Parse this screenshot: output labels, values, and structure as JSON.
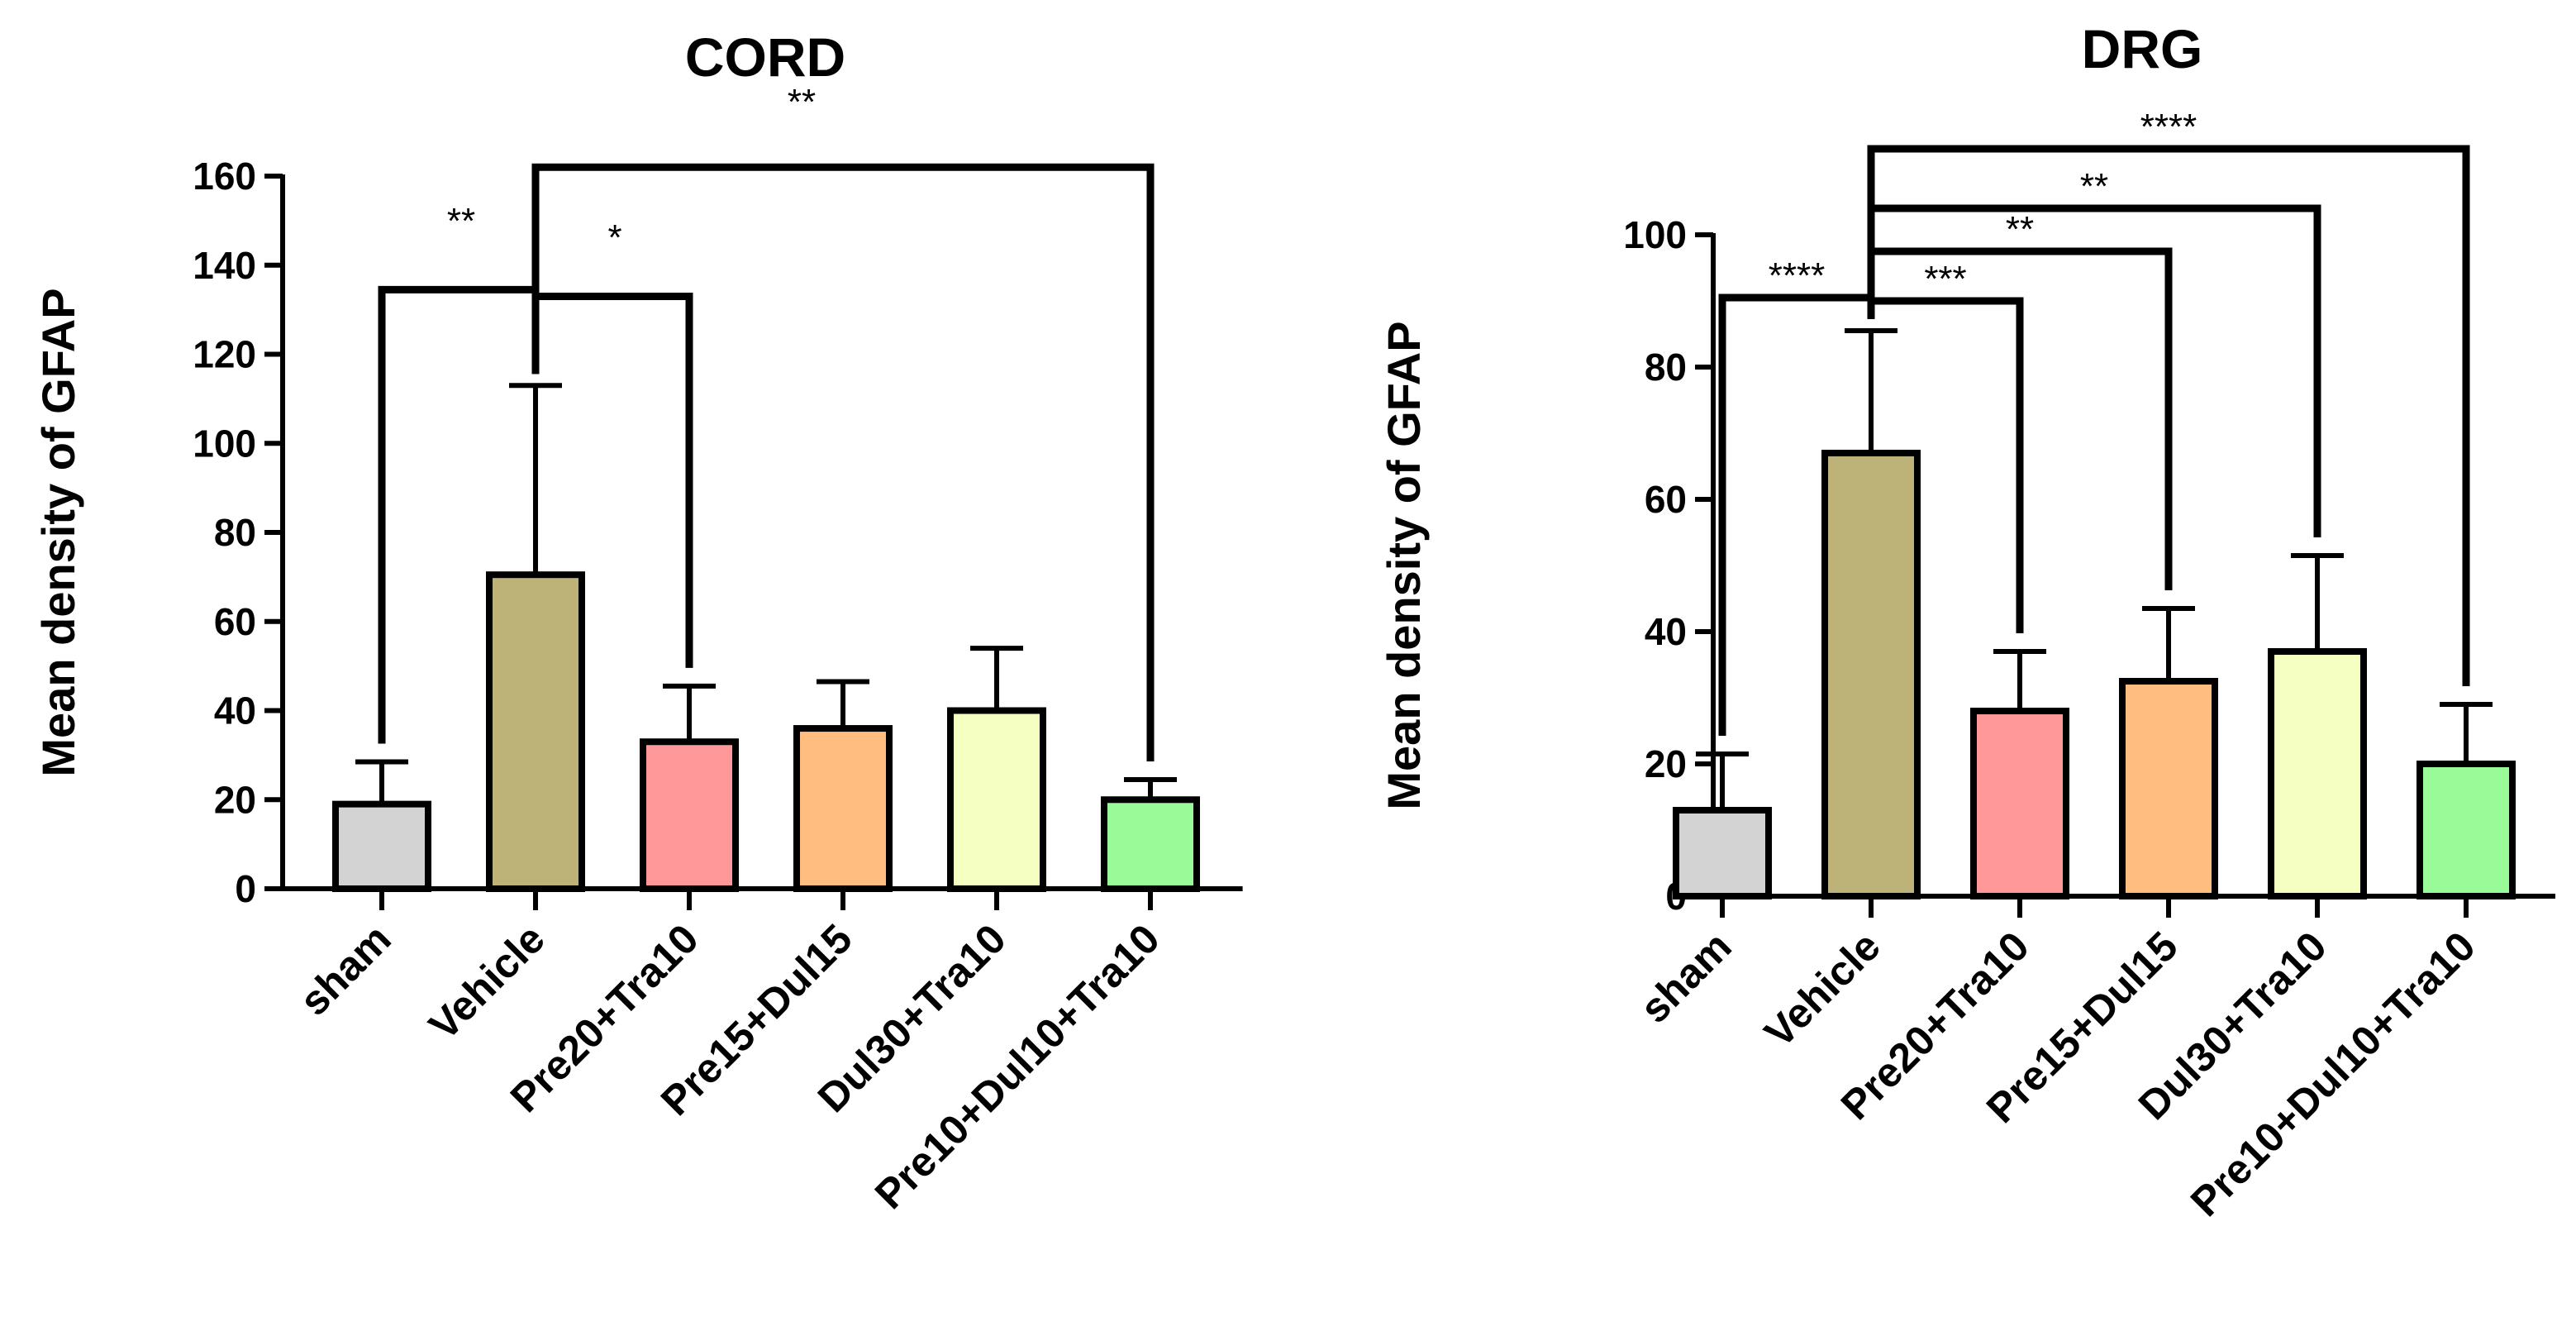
{
  "chart_data": [
    {
      "type": "bar",
      "title": "CORD",
      "xlabel": "",
      "ylabel": "Mean density of GFAP",
      "ylim": [
        0,
        160
      ],
      "yticks": [
        0,
        20,
        40,
        60,
        80,
        100,
        120,
        140,
        160
      ],
      "categories": [
        "sham",
        "Vehicle",
        "Pre20+Tra10",
        "Pre15+Dul15",
        "Dul30+Tra10",
        "Pre10+Dul10+Tra10"
      ],
      "values": [
        19,
        70.5,
        33,
        36,
        40,
        20
      ],
      "errors": [
        9.5,
        42.5,
        12.5,
        10.5,
        14,
        4.5
      ],
      "colors": [
        "#d3d3d3",
        "#bdb277",
        "#ff9999",
        "#ffbe80",
        "#f5ffc2",
        "#98fb98"
      ],
      "significance": [
        {
          "from": 1,
          "to": 0,
          "label": "**",
          "bracket_y": 134.5
        },
        {
          "from": 1,
          "to": 2,
          "label": "*",
          "bracket_y": 133
        },
        {
          "from": 1,
          "to": 5,
          "label": "**",
          "bracket_y": 162
        }
      ]
    },
    {
      "type": "bar",
      "title": "DRG",
      "xlabel": "",
      "ylabel": "Mean density of GFAP",
      "ylim": [
        0,
        100
      ],
      "yticks": [
        0,
        20,
        40,
        60,
        80,
        100
      ],
      "categories": [
        "sham",
        "Vehicle",
        "Pre20+Tra10",
        "Pre15+Dul15",
        "Dul30+Tra10",
        "Pre10+Dul10+Tra10"
      ],
      "values": [
        13,
        67,
        28,
        32.5,
        37,
        20
      ],
      "errors": [
        8.5,
        18.5,
        9,
        11,
        14.5,
        9
      ],
      "colors": [
        "#d3d3d3",
        "#bdb277",
        "#ff9999",
        "#ffbe80",
        "#f5ffc2",
        "#98fb98"
      ],
      "significance": [
        {
          "from": 1,
          "to": 0,
          "label": "****",
          "bracket_y": 90.5
        },
        {
          "from": 1,
          "to": 2,
          "label": "***",
          "bracket_y": 90
        },
        {
          "from": 1,
          "to": 3,
          "label": "**",
          "bracket_y": 97.5
        },
        {
          "from": 1,
          "to": 4,
          "label": "**",
          "bracket_y": 104
        },
        {
          "from": 1,
          "to": 5,
          "label": "****",
          "bracket_y": 113
        }
      ]
    }
  ]
}
